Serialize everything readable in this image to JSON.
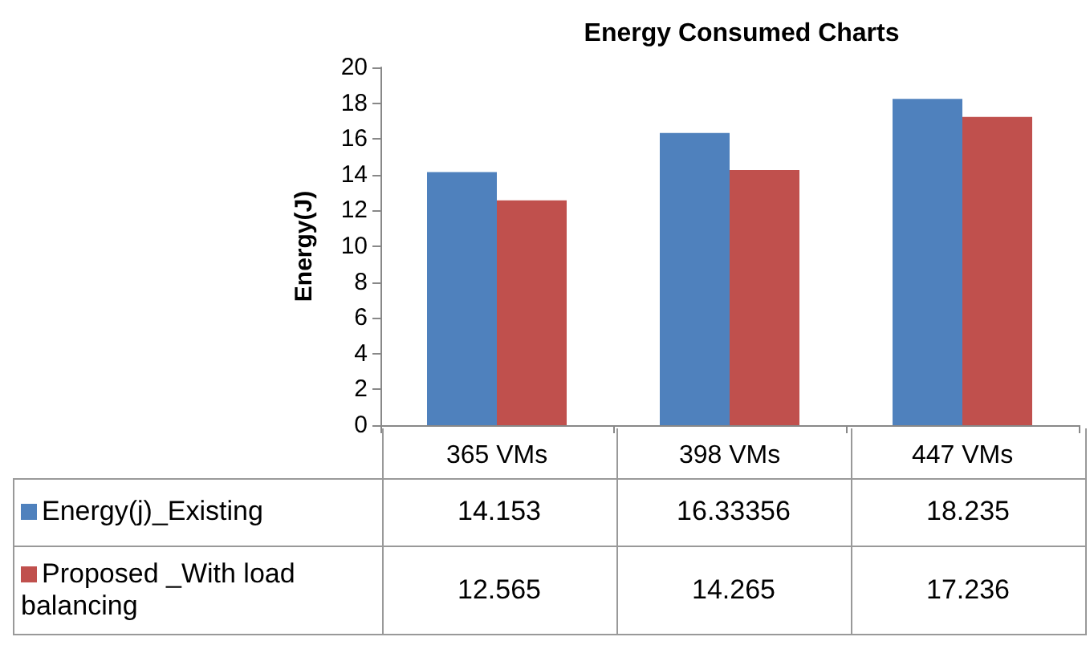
{
  "chart_data": {
    "type": "bar",
    "title": "Energy Consumed Charts",
    "ylabel": "Energy(J)",
    "categories": [
      "365 VMs",
      "398 VMs",
      "447 VMs"
    ],
    "series": [
      {
        "name": "Energy(j)_Existing",
        "color": "#4f81bd",
        "values": [
          14.153,
          16.33356,
          18.235
        ]
      },
      {
        "name": "Proposed _With load balancing",
        "color": "#c0504d",
        "values": [
          12.565,
          14.265,
          17.236
        ]
      }
    ],
    "ylim": [
      0,
      20
    ],
    "yticks": [
      0,
      2,
      4,
      6,
      8,
      10,
      12,
      14,
      16,
      18,
      20
    ],
    "grid": false,
    "legend": "bottom",
    "data_labels": true
  }
}
